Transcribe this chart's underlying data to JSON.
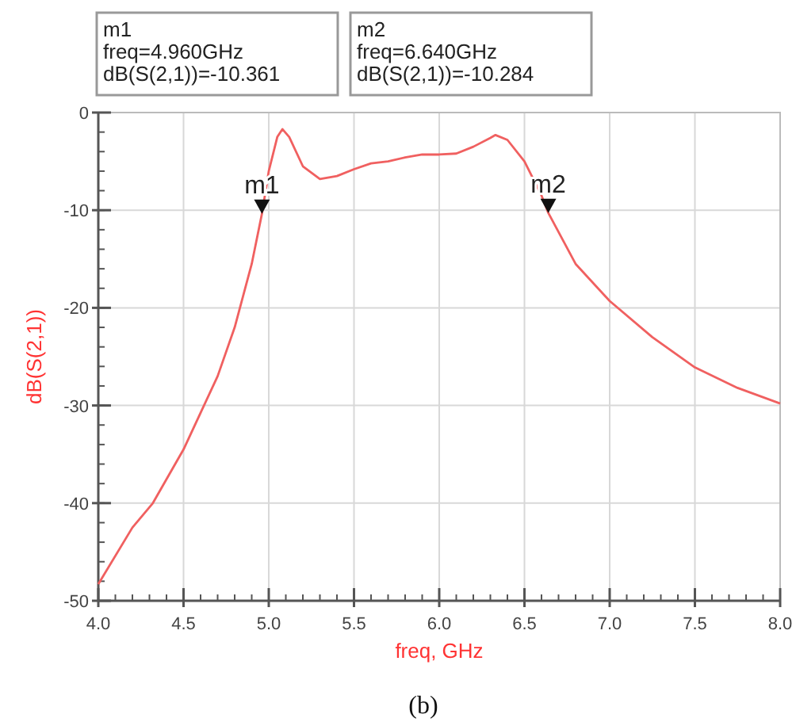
{
  "chart_data": {
    "type": "line",
    "xlabel": "freq, GHz",
    "ylabel": "dB(S(2,1))",
    "xlim": [
      4.0,
      8.0
    ],
    "ylim": [
      -50,
      0
    ],
    "xticks": [
      {
        "value": 4.0,
        "label": "4.0"
      },
      {
        "value": 4.5,
        "label": "4.5"
      },
      {
        "value": 5.0,
        "label": "5.0"
      },
      {
        "value": 5.5,
        "label": "5.5"
      },
      {
        "value": 6.0,
        "label": "6.0"
      },
      {
        "value": 6.5,
        "label": "6.5"
      },
      {
        "value": 7.0,
        "label": "7.0"
      },
      {
        "value": 7.5,
        "label": "7.5"
      },
      {
        "value": 8.0,
        "label": "8.0"
      }
    ],
    "yticks": [
      -50,
      -40,
      -30,
      -20,
      -10,
      0
    ],
    "grid": true,
    "marker": "none",
    "line_style": "solid",
    "series": [
      {
        "color": "#f06060",
        "x": [
          4.0,
          4.2,
          4.32,
          4.5,
          4.7,
          4.8,
          4.9,
          4.96,
          5.0,
          5.05,
          5.08,
          5.12,
          5.2,
          5.3,
          5.4,
          5.5,
          5.6,
          5.7,
          5.8,
          5.9,
          6.0,
          6.1,
          6.2,
          6.3,
          6.33,
          6.4,
          6.5,
          6.6,
          6.64,
          6.8,
          7.0,
          7.25,
          7.5,
          7.75,
          8.0
        ],
        "values": [
          -48.3,
          -42.5,
          -40,
          -34.5,
          -27,
          -22,
          -15.5,
          -10.361,
          -6,
          -2.5,
          -1.7,
          -2.5,
          -5.5,
          -6.8,
          -6.5,
          -5.8,
          -5.2,
          -5.0,
          -4.6,
          -4.3,
          -4.3,
          -4.2,
          -3.5,
          -2.6,
          -2.3,
          -2.8,
          -5,
          -8.5,
          -10.284,
          -15.5,
          -19.3,
          -23,
          -26.1,
          -28.2,
          -29.8
        ]
      }
    ],
    "annotations": [
      "m1\nfreq=4.960GHz\ndB(S(2,1))=-10.361",
      "m2\nfreq=6.640GHz\ndB(S(2,1))=-10.284",
      {
        "text": "m1",
        "x": 4.96,
        "y": -10.361
      },
      {
        "text": "m2",
        "x": 6.64,
        "y": -10.284
      },
      "(b)"
    ]
  }
}
